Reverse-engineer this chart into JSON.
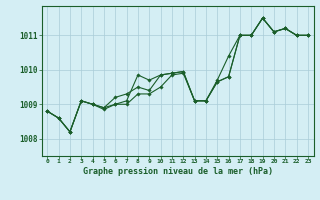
{
  "title": "Graphe pression niveau de la mer (hPa)",
  "bg_color": "#d4eef4",
  "grid_color": "#aaccd8",
  "line_color": "#1a5e2a",
  "marker_color": "#1a5e2a",
  "xlim": [
    -0.5,
    23.5
  ],
  "ylim": [
    1007.5,
    1011.85
  ],
  "yticks": [
    1008,
    1009,
    1010,
    1011
  ],
  "xtick_labels": [
    "0",
    "1",
    "2",
    "3",
    "4",
    "5",
    "6",
    "7",
    "8",
    "9",
    "10",
    "11",
    "12",
    "13",
    "14",
    "15",
    "16",
    "17",
    "18",
    "19",
    "20",
    "21",
    "22",
    "23"
  ],
  "series": [
    [
      1008.8,
      1008.6,
      1008.2,
      1009.1,
      1009.0,
      1008.9,
      1009.0,
      1009.1,
      1009.85,
      1009.7,
      1009.85,
      1009.9,
      1009.95,
      1009.1,
      1009.1,
      1009.65,
      1009.8,
      1011.0,
      1011.0,
      1011.5,
      1011.1,
      1011.2,
      1011.0,
      1011.0
    ],
    [
      1008.8,
      1008.6,
      1008.2,
      1009.1,
      1009.0,
      1008.9,
      1009.2,
      1009.3,
      1009.5,
      1009.4,
      1009.85,
      1009.9,
      1009.95,
      1009.1,
      1009.1,
      1009.7,
      1010.4,
      1011.0,
      1011.0,
      1011.5,
      1011.1,
      1011.2,
      1011.0,
      1011.0
    ],
    [
      1008.8,
      1008.6,
      1008.2,
      1009.1,
      1009.0,
      1008.85,
      1009.0,
      1009.0,
      1009.3,
      1009.3,
      1009.5,
      1009.85,
      1009.9,
      1009.1,
      1009.1,
      1009.65,
      1009.8,
      1011.0,
      1011.0,
      1011.5,
      1011.1,
      1011.2,
      1011.0,
      1011.0
    ]
  ]
}
